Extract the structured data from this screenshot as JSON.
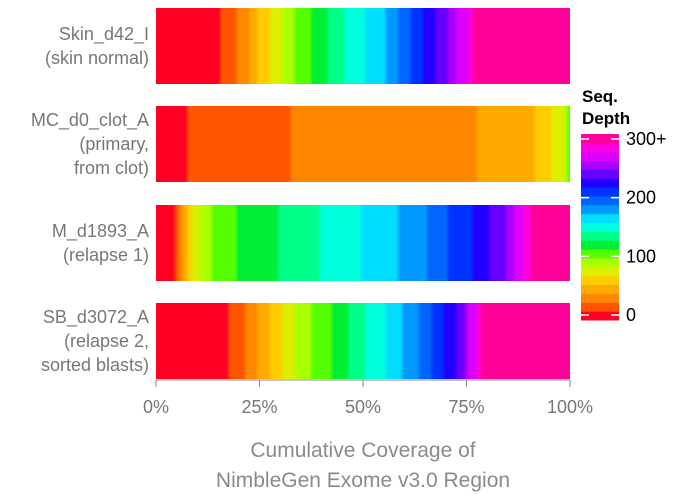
{
  "chart_data": {
    "type": "heatmap",
    "title": "",
    "xlabel_lines": [
      "Cumulative Coverage of",
      "NimbleGen Exome v3.0 Region"
    ],
    "x_ticks": [
      {
        "value": 0,
        "label": "0%"
      },
      {
        "value": 25,
        "label": "25%"
      },
      {
        "value": 50,
        "label": "50%"
      },
      {
        "value": 75,
        "label": "75%"
      },
      {
        "value": 100,
        "label": "100%"
      }
    ],
    "xlim": [
      0,
      100
    ],
    "rows": [
      {
        "label_lines": [
          "Skin_d42_I",
          "(skin normal)"
        ],
        "depth_profile": [
          {
            "x": 0,
            "depth": 0
          },
          {
            "x": 14,
            "depth": 10
          },
          {
            "x": 20,
            "depth": 30
          },
          {
            "x": 25,
            "depth": 60
          },
          {
            "x": 30,
            "depth": 85
          },
          {
            "x": 35,
            "depth": 105
          },
          {
            "x": 40,
            "depth": 125
          },
          {
            "x": 45,
            "depth": 140
          },
          {
            "x": 50,
            "depth": 155
          },
          {
            "x": 55,
            "depth": 170
          },
          {
            "x": 60,
            "depth": 190
          },
          {
            "x": 65,
            "depth": 215
          },
          {
            "x": 70,
            "depth": 240
          },
          {
            "x": 75,
            "depth": 270
          },
          {
            "x": 78,
            "depth": 300
          },
          {
            "x": 100,
            "depth": 300
          }
        ]
      },
      {
        "label_lines": [
          "MC_d0_clot_A",
          "(primary,",
          "from clot)"
        ],
        "depth_profile": [
          {
            "x": 0,
            "depth": 0
          },
          {
            "x": 5,
            "depth": 10
          },
          {
            "x": 15,
            "depth": 25
          },
          {
            "x": 40,
            "depth": 30
          },
          {
            "x": 70,
            "depth": 38
          },
          {
            "x": 85,
            "depth": 48
          },
          {
            "x": 93,
            "depth": 60
          },
          {
            "x": 98,
            "depth": 80
          },
          {
            "x": 100,
            "depth": 105
          }
        ]
      },
      {
        "label_lines": [
          "M_d1893_A",
          "(relapse 1)"
        ],
        "depth_profile": [
          {
            "x": 0,
            "depth": 0
          },
          {
            "x": 4,
            "depth": 10
          },
          {
            "x": 6,
            "depth": 35
          },
          {
            "x": 8,
            "depth": 70
          },
          {
            "x": 12,
            "depth": 95
          },
          {
            "x": 20,
            "depth": 115
          },
          {
            "x": 30,
            "depth": 130
          },
          {
            "x": 45,
            "depth": 150
          },
          {
            "x": 55,
            "depth": 165
          },
          {
            "x": 65,
            "depth": 185
          },
          {
            "x": 75,
            "depth": 210
          },
          {
            "x": 85,
            "depth": 245
          },
          {
            "x": 92,
            "depth": 300
          },
          {
            "x": 100,
            "depth": 300
          }
        ]
      },
      {
        "label_lines": [
          "SB_d3072_A",
          "(relapse 2,",
          "sorted blasts)"
        ],
        "depth_profile": [
          {
            "x": 0,
            "depth": 0
          },
          {
            "x": 16,
            "depth": 10
          },
          {
            "x": 22,
            "depth": 30
          },
          {
            "x": 28,
            "depth": 60
          },
          {
            "x": 33,
            "depth": 85
          },
          {
            "x": 38,
            "depth": 100
          },
          {
            "x": 44,
            "depth": 120
          },
          {
            "x": 50,
            "depth": 140
          },
          {
            "x": 56,
            "depth": 158
          },
          {
            "x": 62,
            "depth": 180
          },
          {
            "x": 68,
            "depth": 205
          },
          {
            "x": 74,
            "depth": 240
          },
          {
            "x": 80,
            "depth": 300
          },
          {
            "x": 100,
            "depth": 300
          }
        ]
      }
    ],
    "legend": {
      "title_lines": [
        "Seq.",
        "Depth"
      ],
      "placement": "right",
      "ticks": [
        {
          "value": 0,
          "label": "0"
        },
        {
          "value": 100,
          "label": "100"
        },
        {
          "value": 200,
          "label": "200"
        },
        {
          "value": 300,
          "label": "300+"
        }
      ],
      "range": [
        0,
        300
      ],
      "colors": [
        "#ff0022",
        "#ff5500",
        "#ff8800",
        "#ffaa00",
        "#ffcc00",
        "#ddee00",
        "#aaff00",
        "#55ff00",
        "#00ee33",
        "#00ff88",
        "#00ffdd",
        "#00ddff",
        "#0099ff",
        "#0066ff",
        "#0033ff",
        "#2200ff",
        "#6600ff",
        "#aa00ff",
        "#dd00ff",
        "#ff00dd",
        "#ff0099"
      ]
    }
  }
}
